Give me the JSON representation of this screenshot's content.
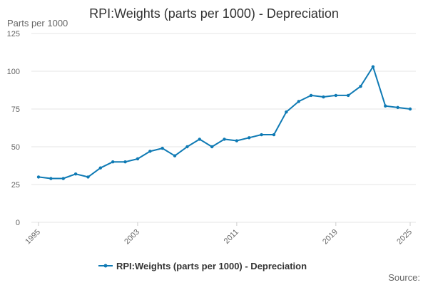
{
  "chart_data": {
    "type": "line",
    "title": "RPI:Weights (parts per 1000) - Depreciation",
    "ylabel": "Parts per 1000",
    "xlabel": "",
    "ylim": [
      0,
      125
    ],
    "yticks": [
      0,
      25,
      50,
      75,
      100,
      125
    ],
    "xlim": [
      1995,
      2025
    ],
    "xticks": [
      1995,
      2003,
      2011,
      2019,
      2025
    ],
    "grid": true,
    "legend_position": "bottom",
    "colors": {
      "series": "#0f7ab4",
      "grid": "#e6e6e6",
      "text": "#333333",
      "muted": "#666666"
    },
    "series": [
      {
        "name": "RPI:Weights (parts per 1000) - Depreciation",
        "x": [
          1995,
          1996,
          1997,
          1998,
          1999,
          2000,
          2001,
          2002,
          2003,
          2004,
          2005,
          2006,
          2007,
          2008,
          2009,
          2010,
          2011,
          2012,
          2013,
          2014,
          2015,
          2016,
          2017,
          2018,
          2019,
          2020,
          2021,
          2022,
          2023,
          2024,
          2025
        ],
        "values": [
          30,
          29,
          29,
          32,
          30,
          36,
          40,
          40,
          42,
          47,
          49,
          44,
          50,
          55,
          50,
          55,
          54,
          56,
          58,
          58,
          73,
          80,
          84,
          83,
          84,
          84,
          90,
          103,
          77,
          76,
          75
        ]
      }
    ],
    "source_label": "Source:"
  }
}
